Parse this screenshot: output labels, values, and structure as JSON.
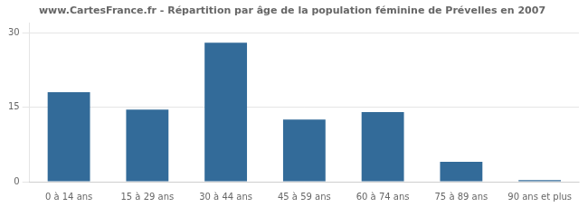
{
  "chart_data": {
    "type": "bar",
    "title": "www.CartesFrance.fr - Répartition par âge de la population féminine de Prévelles en 2007",
    "categories": [
      "0 à 14 ans",
      "15 à 29 ans",
      "30 à 44 ans",
      "45 à 59 ans",
      "60 à 74 ans",
      "75 à 89 ans",
      "90 ans et plus"
    ],
    "values": [
      18,
      14.5,
      28,
      12.5,
      14,
      4,
      0.3
    ],
    "color": "#336b99",
    "ylim": [
      0,
      32
    ],
    "yticks": [
      0,
      15,
      30
    ],
    "grid": true
  }
}
